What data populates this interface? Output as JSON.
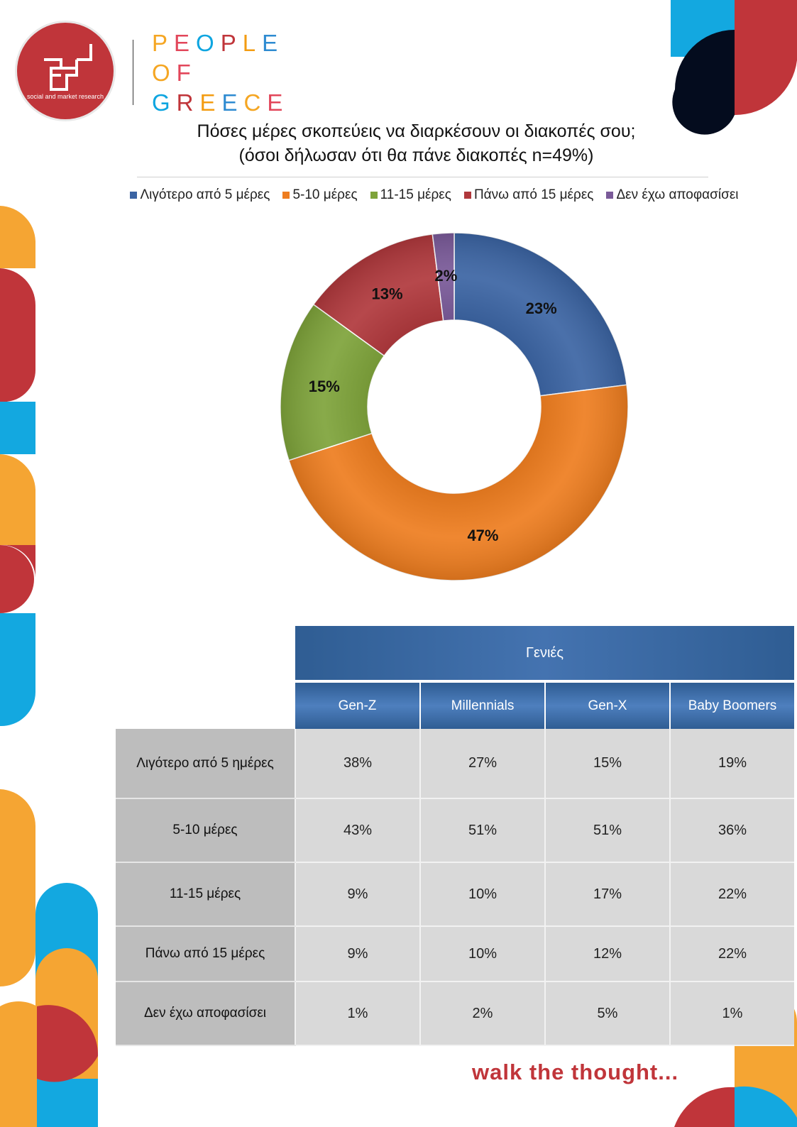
{
  "brand": {
    "logo_subtitle": "social and market research",
    "people_of_greece": [
      "PEOPLE",
      "OF",
      "GREECE"
    ],
    "letter_colors": [
      "#f5a623",
      "#e2465a",
      "#0ea5e0",
      "#c0353a",
      "#f39c12",
      "#2e8bd1"
    ],
    "tagline": "walk the thought..."
  },
  "colors": {
    "red": "#c0353a",
    "orange": "#f5a533",
    "blue": "#13a8e0",
    "navy": "#040c1e"
  },
  "chart_data": {
    "type": "pie",
    "title": "Πόσες μέρες σκοπεύεις να διαρκέσουν οι διακοπές σου;",
    "subtitle": "(όσοι δήλωσαν ότι θα πάνε διακοπές n=49%)",
    "categories": [
      "Λιγότερο από 5 μέρες",
      "5-10 μέρες",
      "11-15 μέρες",
      "Πάνω από 15 μέρες",
      "Δεν έχω αποφασίσει"
    ],
    "values": [
      23,
      47,
      15,
      13,
      2
    ],
    "labels": [
      "23%",
      "47%",
      "15%",
      "13%",
      "2%"
    ],
    "colors": [
      "#3b64a3",
      "#ee7d1f",
      "#7ea33a",
      "#b0383c",
      "#7a5a99"
    ],
    "legend_position": "top"
  },
  "table": {
    "group_header": "Γενιές",
    "columns": [
      "Gen-Z",
      "Millennials",
      "Gen-X",
      "Baby Boomers"
    ],
    "rows": [
      {
        "label": "Λιγότερο από 5 ημέρες",
        "values": [
          "38%",
          "27%",
          "15%",
          "19%"
        ]
      },
      {
        "label": "5-10 μέρες",
        "values": [
          "43%",
          "51%",
          "51%",
          "36%"
        ]
      },
      {
        "label": "11-15 μέρες",
        "values": [
          "9%",
          "10%",
          "17%",
          "22%"
        ]
      },
      {
        "label": "Πάνω από 15 μέρες",
        "values": [
          "9%",
          "10%",
          "12%",
          "22%"
        ]
      },
      {
        "label": "Δεν έχω αποφασίσει",
        "values": [
          "1%",
          "2%",
          "5%",
          "1%"
        ]
      }
    ]
  }
}
